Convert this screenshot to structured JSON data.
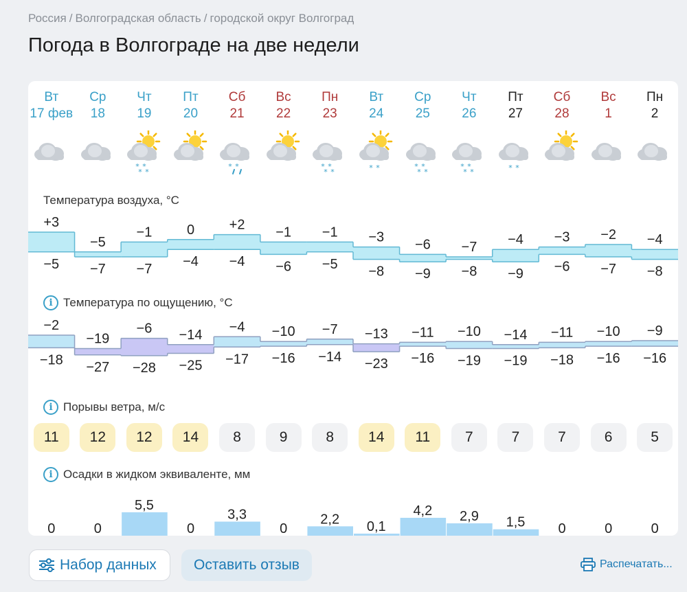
{
  "breadcrumb": [
    "Россия",
    "Волгоградская область",
    "городской округ Волгоград"
  ],
  "breadcrumb_sep": "/",
  "title": "Погода в Волгограде на две недели",
  "days": [
    {
      "name": "Вт",
      "date": "17 фев",
      "weekend": false,
      "today": true,
      "icon": "cloud-icon",
      "precip": "none"
    },
    {
      "name": "Ср",
      "date": "18",
      "weekend": false,
      "today": true,
      "icon": "cloud-icon",
      "precip": "none"
    },
    {
      "name": "Чт",
      "date": "19",
      "weekend": false,
      "today": true,
      "icon": "sun-cloud-icon",
      "precip": "snow"
    },
    {
      "name": "Пт",
      "date": "20",
      "weekend": false,
      "today": true,
      "icon": "sun-cloud-icon",
      "precip": "none"
    },
    {
      "name": "Сб",
      "date": "21",
      "weekend": true,
      "today": true,
      "icon": "cloud-icon",
      "precip": "sleet"
    },
    {
      "name": "Вс",
      "date": "22",
      "weekend": true,
      "today": true,
      "icon": "sun-cloud-icon",
      "precip": "none"
    },
    {
      "name": "Пн",
      "date": "23",
      "weekend": true,
      "today": true,
      "icon": "cloud-icon",
      "precip": "snow"
    },
    {
      "name": "Вт",
      "date": "24",
      "weekend": false,
      "today": true,
      "icon": "sun-cloud-icon",
      "precip": "snow-light"
    },
    {
      "name": "Ср",
      "date": "25",
      "weekend": false,
      "today": true,
      "icon": "cloud-icon",
      "precip": "snow"
    },
    {
      "name": "Чт",
      "date": "26",
      "weekend": false,
      "today": true,
      "icon": "cloud-icon",
      "precip": "snow"
    },
    {
      "name": "Пт",
      "date": "27",
      "weekend": false,
      "today": false,
      "icon": "cloud-icon",
      "precip": "snow-light"
    },
    {
      "name": "Сб",
      "date": "28",
      "weekend": true,
      "today": false,
      "icon": "sun-cloud-icon",
      "precip": "none"
    },
    {
      "name": "Вс",
      "date": "1",
      "weekend": true,
      "today": false,
      "icon": "cloud-icon",
      "precip": "none"
    },
    {
      "name": "Пн",
      "date": "2",
      "weekend": false,
      "today": false,
      "icon": "cloud-icon",
      "precip": "none"
    }
  ],
  "colors": {
    "weekday": "#3aa0c8",
    "weekend": "#b03a3a",
    "future": "#222222",
    "temp_fill": "#bdebf6",
    "temp_stroke": "#62b9d4",
    "feel_warm": "#bfe6f7",
    "feel_cold": "#c9c7f5",
    "precip_fill": "#a8d8f6",
    "wind_strong": "#fbf0c3",
    "wind_weak": "#f1f2f4"
  },
  "labels": {
    "air_temp": "Температура воздуха, °C",
    "feels_like": "Температура по ощущению, °C",
    "wind_gusts": "Порывы ветра, м/с",
    "precip": "Осадки в жидком эквиваленте, мм"
  },
  "chart_data": [
    {
      "type": "area",
      "name": "air_temperature",
      "categories": [
        "17 фев",
        "18",
        "19",
        "20",
        "21",
        "22",
        "23",
        "24",
        "25",
        "26",
        "27",
        "28",
        "1",
        "2"
      ],
      "series": [
        {
          "name": "max",
          "values": [
            "+3",
            "−5",
            "−1",
            "0",
            "+2",
            "−1",
            "−1",
            "−3",
            "−6",
            "−7",
            "−4",
            "−3",
            "−2",
            "−4"
          ]
        },
        {
          "name": "min",
          "values": [
            "−5",
            "−7",
            "−7",
            "−4",
            "−4",
            "−6",
            "−5",
            "−8",
            "−9",
            "−8",
            "−9",
            "−6",
            "−7",
            "−8"
          ]
        }
      ]
    },
    {
      "type": "area",
      "name": "feels_like",
      "categories": [
        "17 фев",
        "18",
        "19",
        "20",
        "21",
        "22",
        "23",
        "24",
        "25",
        "26",
        "27",
        "28",
        "1",
        "2"
      ],
      "series": [
        {
          "name": "max",
          "values": [
            "−2",
            "−19",
            "−6",
            "−14",
            "−4",
            "−10",
            "−7",
            "−13",
            "−11",
            "−10",
            "−14",
            "−11",
            "−10",
            "−9"
          ]
        },
        {
          "name": "min",
          "values": [
            "−18",
            "−27",
            "−28",
            "−25",
            "−17",
            "−16",
            "−14",
            "−23",
            "−16",
            "−19",
            "−19",
            "−18",
            "−16",
            "−16"
          ]
        }
      ]
    },
    {
      "type": "bar",
      "name": "wind_gusts",
      "categories": [
        "17 фев",
        "18",
        "19",
        "20",
        "21",
        "22",
        "23",
        "24",
        "25",
        "26",
        "27",
        "28",
        "1",
        "2"
      ],
      "values": [
        11,
        12,
        12,
        14,
        8,
        9,
        8,
        14,
        11,
        7,
        7,
        7,
        6,
        5
      ]
    },
    {
      "type": "bar",
      "name": "precipitation",
      "categories": [
        "17 фев",
        "18",
        "19",
        "20",
        "21",
        "22",
        "23",
        "24",
        "25",
        "26",
        "27",
        "28",
        "1",
        "2"
      ],
      "values": [
        "0",
        "0",
        "5,5",
        "0",
        "3,3",
        "0",
        "2,2",
        "0,1",
        "4,2",
        "2,9",
        "1,5",
        "0",
        "0",
        "0"
      ]
    }
  ],
  "buttons": {
    "dataset": "Набор данных",
    "feedback": "Оставить отзыв",
    "print": "Распечатать..."
  },
  "info_glyph": "i"
}
